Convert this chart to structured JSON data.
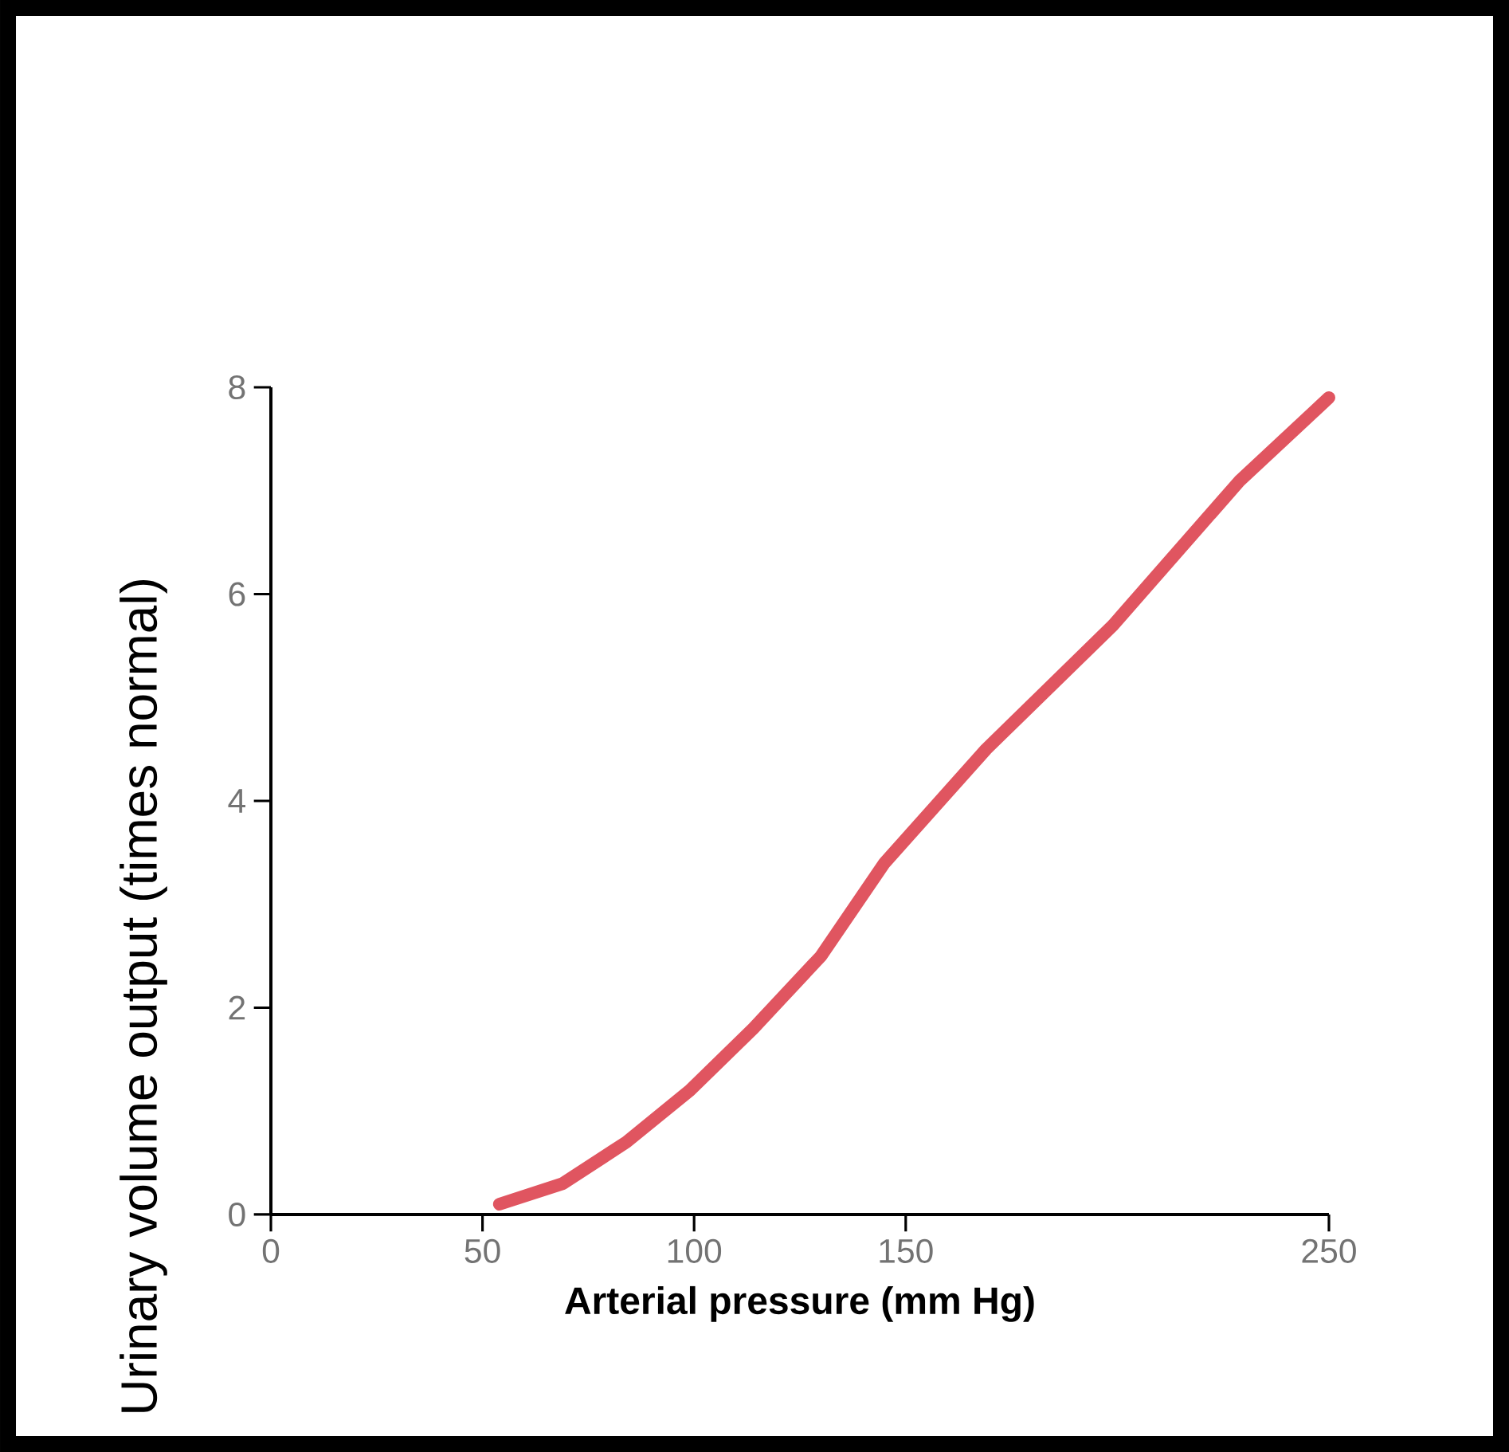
{
  "chart_data": {
    "type": "line",
    "xlabel": "Arterial pressure (mm Hg)",
    "ylabel": "Urinary volume output (times normal)",
    "x": [
      54,
      69,
      84,
      99,
      114,
      130,
      145,
      169,
      199,
      229,
      250
    ],
    "values": [
      0.1,
      0.3,
      0.7,
      1.2,
      1.8,
      2.5,
      3.4,
      4.5,
      5.7,
      7.1,
      7.9
    ],
    "color": "#e05560",
    "xlim": [
      0,
      250
    ],
    "xticks": [
      0,
      50,
      100,
      150,
      250
    ],
    "ylim": [
      0,
      8
    ],
    "yticks": [
      0,
      2,
      4,
      6,
      8
    ]
  }
}
